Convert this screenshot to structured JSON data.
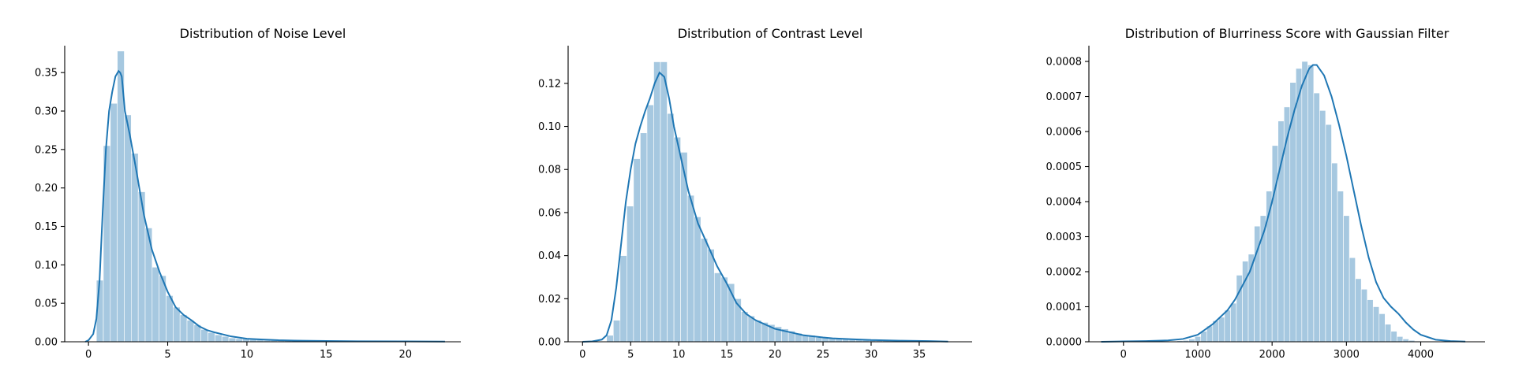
{
  "chart_data": [
    {
      "type": "bar",
      "title": "Distribution of Noise Level",
      "xlabel": "",
      "ylabel": "",
      "xlim": [
        -1.5,
        23.5
      ],
      "ylim": [
        0,
        0.385
      ],
      "xticks": [
        0,
        5,
        10,
        15,
        20
      ],
      "yticks": [
        0.0,
        0.05,
        0.1,
        0.15,
        0.2,
        0.25,
        0.3,
        0.35
      ],
      "ytick_labels": [
        "0.00",
        "0.05",
        "0.10",
        "0.15",
        "0.20",
        "0.25",
        "0.30",
        "0.35"
      ],
      "xtick_labels": [
        "0",
        "5",
        "10",
        "15",
        "20"
      ],
      "bar_color": "#a6c8e0",
      "line_color": "#1f77b4",
      "histogram": {
        "bin_width": 0.44,
        "bin_starts": [
          0.5,
          0.94,
          1.38,
          1.82,
          2.26,
          2.7,
          3.14,
          3.58,
          4.02,
          4.46,
          4.9,
          5.34,
          5.78,
          6.22,
          6.66,
          7.1,
          7.54,
          7.98,
          8.42,
          8.86,
          9.3,
          9.74,
          10.18,
          10.62,
          11.06,
          11.5,
          11.94,
          12.38,
          12.82,
          13.26,
          13.7,
          14.14,
          14.58,
          15.02,
          15.46,
          15.9,
          16.34,
          16.78,
          17.22,
          17.66,
          18.1,
          18.54,
          18.98,
          19.42,
          19.86,
          20.3,
          20.74,
          21.18,
          21.62,
          22.06
        ],
        "density": [
          0.08,
          0.255,
          0.31,
          0.378,
          0.295,
          0.245,
          0.195,
          0.148,
          0.097,
          0.086,
          0.06,
          0.045,
          0.035,
          0.028,
          0.022,
          0.016,
          0.012,
          0.009,
          0.007,
          0.005,
          0.004,
          0.004,
          0.003,
          0.003,
          0.002,
          0.002,
          0.002,
          0.002,
          0.0015,
          0.0015,
          0.001,
          0.001,
          0.001,
          0.001,
          0.001,
          0.001,
          0.001,
          0.001,
          0.0008,
          0.0008,
          0.0008,
          0.0008,
          0.0006,
          0.0006,
          0.0006,
          0.0006,
          0.0005,
          0.0005,
          0.0005,
          0.0005
        ]
      },
      "kde": {
        "x": [
          -0.2,
          0.0,
          0.3,
          0.5,
          0.7,
          0.9,
          1.1,
          1.3,
          1.5,
          1.7,
          1.9,
          2.0,
          2.1,
          2.3,
          2.6,
          3.0,
          3.5,
          4.0,
          4.5,
          5.0,
          5.5,
          6.0,
          6.5,
          7.0,
          7.5,
          8.0,
          9.0,
          10.0,
          11.0,
          12.0,
          13.0,
          15.0,
          17.0,
          20.0,
          22.5
        ],
        "y": [
          0.0,
          0.002,
          0.01,
          0.03,
          0.08,
          0.17,
          0.25,
          0.3,
          0.325,
          0.345,
          0.352,
          0.35,
          0.345,
          0.3,
          0.27,
          0.225,
          0.165,
          0.12,
          0.09,
          0.065,
          0.045,
          0.035,
          0.028,
          0.02,
          0.015,
          0.012,
          0.007,
          0.004,
          0.003,
          0.002,
          0.0015,
          0.001,
          0.0007,
          0.0005,
          0.0003
        ]
      }
    },
    {
      "type": "bar",
      "title": "Distribution of Contrast Level",
      "xlabel": "",
      "ylabel": "",
      "xlim": [
        -1.5,
        40.5
      ],
      "ylim": [
        0,
        0.1375
      ],
      "xticks": [
        0,
        5,
        10,
        15,
        20,
        25,
        30,
        35
      ],
      "yticks": [
        0.0,
        0.02,
        0.04,
        0.06,
        0.08,
        0.1,
        0.12
      ],
      "ytick_labels": [
        "0.00",
        "0.02",
        "0.04",
        "0.06",
        "0.08",
        "0.10",
        "0.12"
      ],
      "xtick_labels": [
        "0",
        "5",
        "10",
        "15",
        "20",
        "25",
        "30",
        "35"
      ],
      "bar_color": "#a6c8e0",
      "line_color": "#1f77b4",
      "histogram": {
        "bin_width": 0.7,
        "bin_starts": [
          2.5,
          3.2,
          3.9,
          4.6,
          5.3,
          6.0,
          6.7,
          7.4,
          8.1,
          8.8,
          9.5,
          10.2,
          10.9,
          11.6,
          12.3,
          13.0,
          13.7,
          14.4,
          15.1,
          15.8,
          16.5,
          17.2,
          17.9,
          18.6,
          19.3,
          20.0,
          20.7,
          21.4,
          22.1,
          22.8,
          23.5,
          24.2,
          24.9,
          25.6,
          26.3,
          27.0,
          27.7,
          28.4,
          29.1,
          29.8,
          30.5,
          31.2,
          31.9,
          32.6,
          33.3,
          34.0,
          34.7,
          35.4,
          36.1,
          36.8
        ],
        "density": [
          0.003,
          0.01,
          0.04,
          0.063,
          0.085,
          0.097,
          0.11,
          0.13,
          0.13,
          0.106,
          0.095,
          0.088,
          0.068,
          0.058,
          0.048,
          0.043,
          0.032,
          0.03,
          0.027,
          0.02,
          0.014,
          0.012,
          0.01,
          0.009,
          0.008,
          0.007,
          0.006,
          0.005,
          0.004,
          0.003,
          0.003,
          0.002,
          0.002,
          0.0018,
          0.0016,
          0.0014,
          0.0012,
          0.001,
          0.001,
          0.0009,
          0.0008,
          0.0007,
          0.0006,
          0.0005,
          0.0005,
          0.0004,
          0.0004,
          0.0003,
          0.0003,
          0.0003
        ]
      },
      "kde": {
        "x": [
          0.0,
          1.0,
          2.0,
          2.5,
          3.0,
          3.5,
          4.0,
          4.5,
          5.0,
          5.5,
          6.0,
          6.5,
          7.0,
          7.5,
          8.0,
          8.5,
          9.0,
          9.5,
          10.0,
          10.5,
          11.0,
          12.0,
          13.0,
          14.0,
          15.0,
          16.0,
          17.0,
          18.0,
          19.0,
          20.0,
          21.0,
          22.0,
          23.0,
          24.0,
          25.0,
          26.0,
          28.0,
          30.0,
          33.0,
          36.0,
          38.0
        ],
        "y": [
          0.0,
          0.0002,
          0.001,
          0.003,
          0.01,
          0.025,
          0.045,
          0.065,
          0.08,
          0.092,
          0.1,
          0.107,
          0.113,
          0.12,
          0.125,
          0.123,
          0.113,
          0.1,
          0.09,
          0.08,
          0.07,
          0.055,
          0.045,
          0.035,
          0.027,
          0.018,
          0.013,
          0.01,
          0.008,
          0.006,
          0.005,
          0.004,
          0.003,
          0.0025,
          0.002,
          0.0016,
          0.0012,
          0.0008,
          0.0005,
          0.0003,
          0.0001
        ]
      }
    },
    {
      "type": "bar",
      "title": "Distribution of Blurriness Score with Gaussian Filter",
      "xlabel": "",
      "ylabel": "",
      "xlim": [
        -465,
        4865
      ],
      "ylim": [
        0,
        0.000845
      ],
      "xticks": [
        0,
        1000,
        2000,
        3000,
        4000
      ],
      "yticks": [
        0.0,
        0.0001,
        0.0002,
        0.0003,
        0.0004,
        0.0005,
        0.0006,
        0.0007,
        0.0008
      ],
      "ytick_labels": [
        "0.0000",
        "0.0001",
        "0.0002",
        "0.0003",
        "0.0004",
        "0.0005",
        "0.0006",
        "0.0007",
        "0.0008"
      ],
      "xtick_labels": [
        "0",
        "1000",
        "2000",
        "3000",
        "4000"
      ],
      "bar_color": "#a6c8e0",
      "line_color": "#1f77b4",
      "histogram": {
        "bin_width": 80,
        "bin_starts": [
          0,
          80,
          160,
          240,
          320,
          400,
          480,
          560,
          640,
          720,
          800,
          880,
          960,
          1040,
          1120,
          1200,
          1280,
          1360,
          1440,
          1520,
          1600,
          1680,
          1760,
          1840,
          1920,
          2000,
          2080,
          2160,
          2240,
          2320,
          2400,
          2480,
          2560,
          2640,
          2720,
          2800,
          2880,
          2960,
          3040,
          3120,
          3200,
          3280,
          3360,
          3440,
          3520,
          3600,
          3680,
          3760,
          3840,
          3920,
          4000,
          4080,
          4160,
          4240
        ],
        "density": [
          1e-06,
          1e-06,
          1e-06,
          1e-06,
          1e-06,
          1e-06,
          1e-06,
          2e-06,
          2e-06,
          3e-06,
          4e-06,
          8e-06,
          1.5e-05,
          3e-05,
          4.5e-05,
          6e-05,
          7e-05,
          9e-05,
          0.00011,
          0.00019,
          0.00023,
          0.00025,
          0.00033,
          0.00036,
          0.00043,
          0.00056,
          0.00063,
          0.00067,
          0.00074,
          0.00078,
          0.0008,
          0.00079,
          0.00071,
          0.00066,
          0.00062,
          0.00051,
          0.00043,
          0.00036,
          0.00024,
          0.00018,
          0.00015,
          0.00012,
          0.0001,
          8e-05,
          5e-05,
          3e-05,
          1.5e-05,
          8e-06,
          4e-06,
          2e-06,
          1e-06,
          8e-07,
          5e-07,
          3e-07
        ]
      },
      "kde": {
        "x": [
          -300,
          0,
          300,
          600,
          800,
          1000,
          1200,
          1400,
          1500,
          1600,
          1700,
          1800,
          1900,
          2000,
          2100,
          2200,
          2300,
          2400,
          2500,
          2550,
          2600,
          2700,
          2800,
          2900,
          3000,
          3100,
          3200,
          3300,
          3400,
          3500,
          3600,
          3700,
          3800,
          3900,
          4000,
          4200,
          4400,
          4600
        ],
        "y": [
          0.0,
          1e-06,
          2e-06,
          4e-06,
          8e-06,
          2e-05,
          5e-05,
          9e-05,
          0.00012,
          0.00016,
          0.0002,
          0.00026,
          0.00032,
          0.0004,
          0.00049,
          0.00058,
          0.00066,
          0.00073,
          0.00078,
          0.00079,
          0.00079,
          0.00076,
          0.0007,
          0.00062,
          0.00053,
          0.00043,
          0.00033,
          0.00024,
          0.00017,
          0.000125,
          0.0001,
          8e-05,
          5.5e-05,
          3.5e-05,
          2e-05,
          6e-06,
          2e-06,
          5e-07
        ]
      }
    }
  ]
}
